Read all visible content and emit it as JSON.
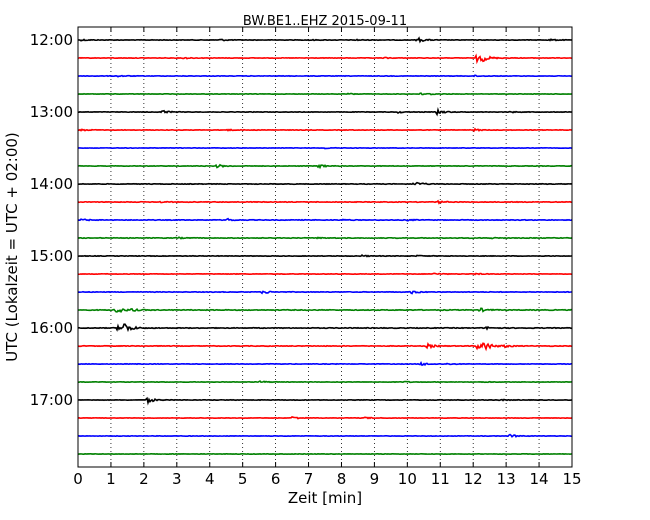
{
  "chart_data": {
    "type": "line",
    "title": "BW.BE1..EHZ 2015-09-11",
    "xlabel": "Zeit  [min]",
    "ylabel": "UTC (Lokalzeit = UTC + 02:00)",
    "xlim": [
      0,
      15
    ],
    "x_ticks": [
      "0",
      "1",
      "2",
      "3",
      "4",
      "5",
      "6",
      "7",
      "8",
      "9",
      "10",
      "11",
      "12",
      "13",
      "14",
      "15"
    ],
    "y_ticks": [
      "12:00",
      "13:00",
      "14:00",
      "15:00",
      "16:00",
      "17:00"
    ],
    "grid": "vertical dotted",
    "colors": [
      "#000000",
      "#ff0000",
      "#0000ff",
      "#008000"
    ],
    "rows": [
      {
        "time": "12:00",
        "color": "#000000",
        "noise": 0.25,
        "events": [
          [
            0.1,
            0.8
          ],
          [
            4.3,
            0.9
          ],
          [
            7.0,
            0.5
          ],
          [
            8.4,
            0.7
          ],
          [
            10.3,
            2.5
          ],
          [
            14.3,
            0.9
          ]
        ]
      },
      {
        "time": "12:15",
        "color": "#ff0000",
        "noise": 0.25,
        "events": [
          [
            3.2,
            0.9
          ],
          [
            9.3,
            0.5
          ],
          [
            12.1,
            4.5
          ],
          [
            12.3,
            2.0
          ]
        ]
      },
      {
        "time": "12:30",
        "color": "#0000ff",
        "noise": 0.25,
        "events": [
          [
            1.2,
            0.7
          ],
          [
            12.0,
            0.7
          ]
        ]
      },
      {
        "time": "12:45",
        "color": "#008000",
        "noise": 0.22,
        "events": [
          [
            8.2,
            0.7
          ],
          [
            10.4,
            1.0
          ],
          [
            10.7,
            0.5
          ]
        ]
      },
      {
        "time": "13:00",
        "color": "#000000",
        "noise": 0.25,
        "events": [
          [
            2.5,
            2.6
          ],
          [
            9.7,
            1.0
          ],
          [
            10.9,
            2.2
          ],
          [
            13.1,
            0.7
          ]
        ]
      },
      {
        "time": "13:15",
        "color": "#ff0000",
        "noise": 0.25,
        "events": [
          [
            0.1,
            0.8
          ],
          [
            4.5,
            0.7
          ],
          [
            12.0,
            1.2
          ]
        ]
      },
      {
        "time": "13:30",
        "color": "#0000ff",
        "noise": 0.22,
        "events": [
          [
            7.5,
            0.6
          ]
        ]
      },
      {
        "time": "13:45",
        "color": "#008000",
        "noise": 0.25,
        "events": [
          [
            4.2,
            1.8
          ],
          [
            7.3,
            1.8
          ]
        ]
      },
      {
        "time": "14:00",
        "color": "#000000",
        "noise": 0.28,
        "events": [
          [
            10.2,
            2.6
          ]
        ]
      },
      {
        "time": "14:15",
        "color": "#ff0000",
        "noise": 0.3,
        "events": [
          [
            2.5,
            0.6
          ],
          [
            10.9,
            1.3
          ]
        ]
      },
      {
        "time": "14:30",
        "color": "#0000ff",
        "noise": 0.3,
        "events": [
          [
            0.1,
            0.9
          ],
          [
            4.5,
            1.5
          ],
          [
            8.0,
            0.6
          ],
          [
            10.0,
            0.6
          ]
        ]
      },
      {
        "time": "14:45",
        "color": "#008000",
        "noise": 0.3,
        "events": [
          [
            3.0,
            0.7
          ],
          [
            7.2,
            0.6
          ],
          [
            12.5,
            0.6
          ]
        ]
      },
      {
        "time": "15:00",
        "color": "#000000",
        "noise": 0.25,
        "events": [
          [
            8.6,
            0.9
          ],
          [
            10.3,
            0.6
          ]
        ]
      },
      {
        "time": "15:15",
        "color": "#ff0000",
        "noise": 0.25,
        "events": [
          [
            10.8,
            0.8
          ],
          [
            12.0,
            0.8
          ]
        ]
      },
      {
        "time": "15:30",
        "color": "#0000ff",
        "noise": 0.28,
        "events": [
          [
            5.6,
            2.0
          ],
          [
            10.1,
            1.8
          ]
        ]
      },
      {
        "time": "15:45",
        "color": "#008000",
        "noise": 0.35,
        "events": [
          [
            1.1,
            4.2
          ],
          [
            1.6,
            1.2
          ],
          [
            12.2,
            1.8
          ]
        ]
      },
      {
        "time": "16:00",
        "color": "#000000",
        "noise": 0.35,
        "events": [
          [
            1.2,
            3.2
          ],
          [
            1.4,
            4.5
          ],
          [
            12.4,
            1.2
          ]
        ]
      },
      {
        "time": "16:15",
        "color": "#ff0000",
        "noise": 0.3,
        "events": [
          [
            10.6,
            2.2
          ],
          [
            12.3,
            5.0
          ],
          [
            12.1,
            3.0
          ],
          [
            12.9,
            1.5
          ]
        ]
      },
      {
        "time": "16:30",
        "color": "#0000ff",
        "noise": 0.25,
        "events": [
          [
            10.4,
            1.7
          ],
          [
            11.2,
            0.5
          ]
        ]
      },
      {
        "time": "16:45",
        "color": "#008000",
        "noise": 0.22,
        "events": [
          [
            5.5,
            1.2
          ],
          [
            9.9,
            0.6
          ],
          [
            12.3,
            0.5
          ]
        ]
      },
      {
        "time": "17:00",
        "color": "#000000",
        "noise": 0.25,
        "events": [
          [
            2.1,
            2.9
          ],
          [
            12.8,
            0.6
          ]
        ]
      },
      {
        "time": "17:15",
        "color": "#ff0000",
        "noise": 0.22,
        "events": [
          [
            6.5,
            1.5
          ],
          [
            8.7,
            0.8
          ]
        ]
      },
      {
        "time": "17:30",
        "color": "#0000ff",
        "noise": 0.22,
        "events": [
          [
            13.1,
            1.7
          ]
        ]
      },
      {
        "time": "17:45",
        "color": "#008000",
        "noise": 0.2,
        "events": []
      }
    ]
  }
}
